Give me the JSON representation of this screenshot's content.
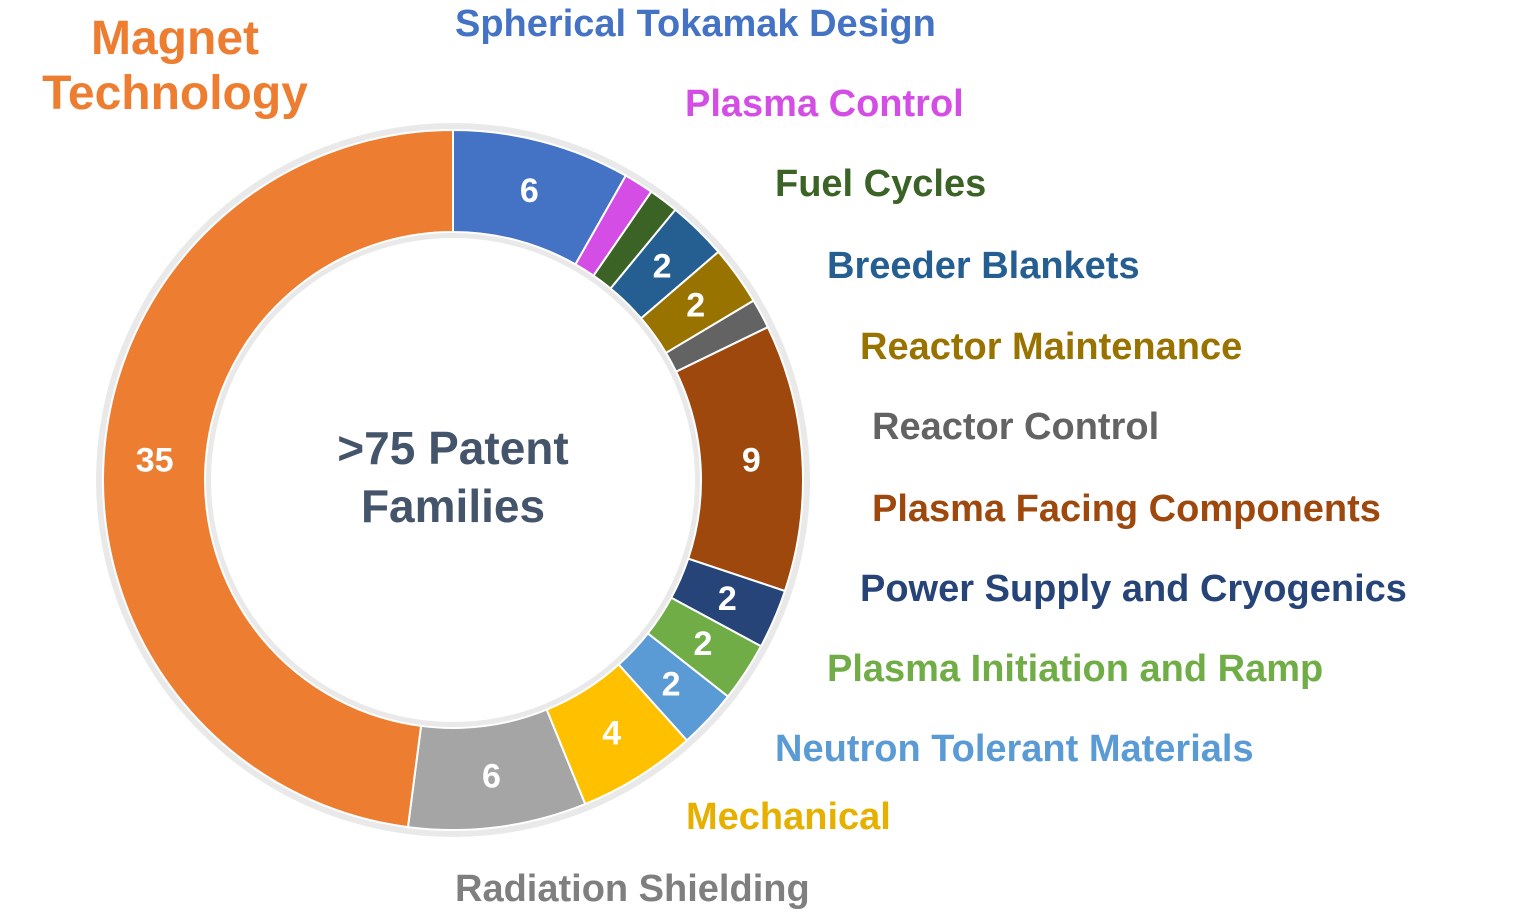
{
  "chart_data": {
    "type": "donut",
    "center_text": ">75 Patent Families",
    "categories": [
      "Spherical Tokamak Design",
      "Plasma Control",
      "Fuel Cycles",
      "Breeder Blankets",
      "Reactor Maintenance",
      "Reactor Control",
      "Plasma Facing Components",
      "Power Supply and Cryogenics",
      "Plasma Initiation and Ramp",
      "Neutron Tolerant Materials",
      "Mechanical",
      "Radiation Shielding",
      "Magnet Technology"
    ],
    "values": [
      6,
      1,
      1,
      2,
      2,
      1,
      9,
      2,
      2,
      2,
      4,
      6,
      35
    ],
    "value_labels": [
      "6",
      null,
      null,
      "2",
      "2",
      null,
      "9",
      "2",
      "2",
      "2",
      "4",
      "6",
      "35"
    ],
    "colors": [
      "#4472c4",
      "#d44ee6",
      "#3b6326",
      "#255e91",
      "#997300",
      "#636363",
      "#9e480e",
      "#264478",
      "#70ad47",
      "#5b9bd5",
      "#ffc000",
      "#a5a5a5",
      "#ed7d31"
    ]
  }
}
